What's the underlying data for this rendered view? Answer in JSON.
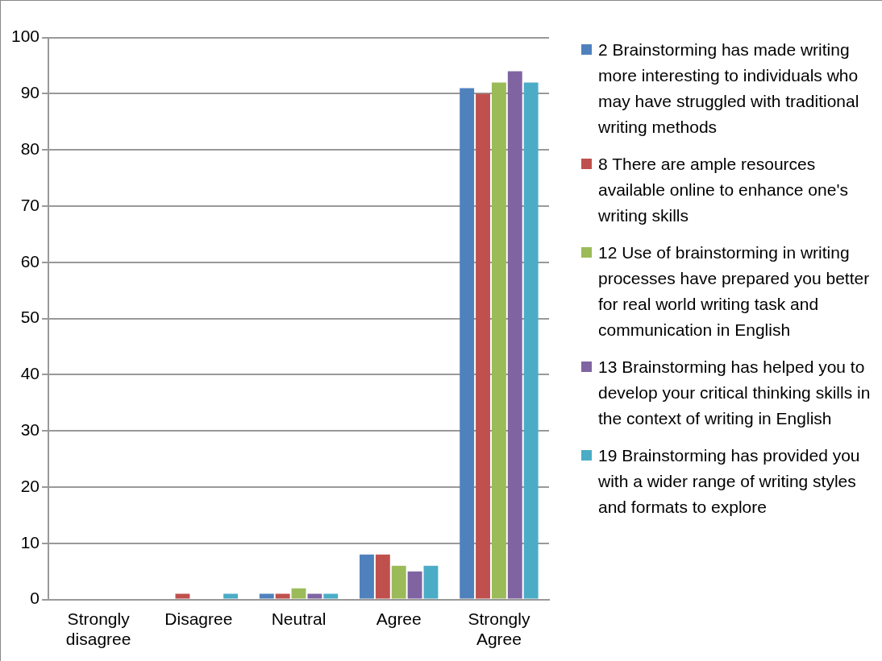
{
  "chart_data": {
    "type": "bar",
    "categories": [
      "Strongly disagree",
      "Disagree",
      "Neutral",
      "Agree",
      "Strongly Agree"
    ],
    "series": [
      {
        "name": "2 Brainstorming has made writing more interesting to individuals who may have struggled with traditional writing methods",
        "color": "#4f81bd",
        "values": [
          0,
          0,
          1,
          8,
          91
        ]
      },
      {
        "name": "8 There are  ample resources available online to enhance one's  writing skills",
        "color": "#c0504d",
        "values": [
          0,
          1,
          1,
          8,
          90
        ]
      },
      {
        "name": "12 Use of brainstorming in writing processes have prepared you better for real world writing task and communication in English",
        "color": "#9bbb59",
        "values": [
          0,
          0,
          2,
          6,
          92
        ]
      },
      {
        "name": "13 Brainstorming has helped you to develop your critical thinking skills in the context of writing in English",
        "color": "#8064a2",
        "values": [
          0,
          0,
          1,
          5,
          94
        ]
      },
      {
        "name": "19 Brainstorming has provided you with a wider range of writing styles and formats to explore",
        "color": "#4bacc6",
        "values": [
          0,
          1,
          1,
          6,
          92
        ]
      }
    ],
    "ylim": [
      0,
      100
    ],
    "yticks": [
      0,
      10,
      20,
      30,
      40,
      50,
      60,
      70,
      80,
      90,
      100
    ],
    "grid": "y",
    "legend": "right"
  }
}
